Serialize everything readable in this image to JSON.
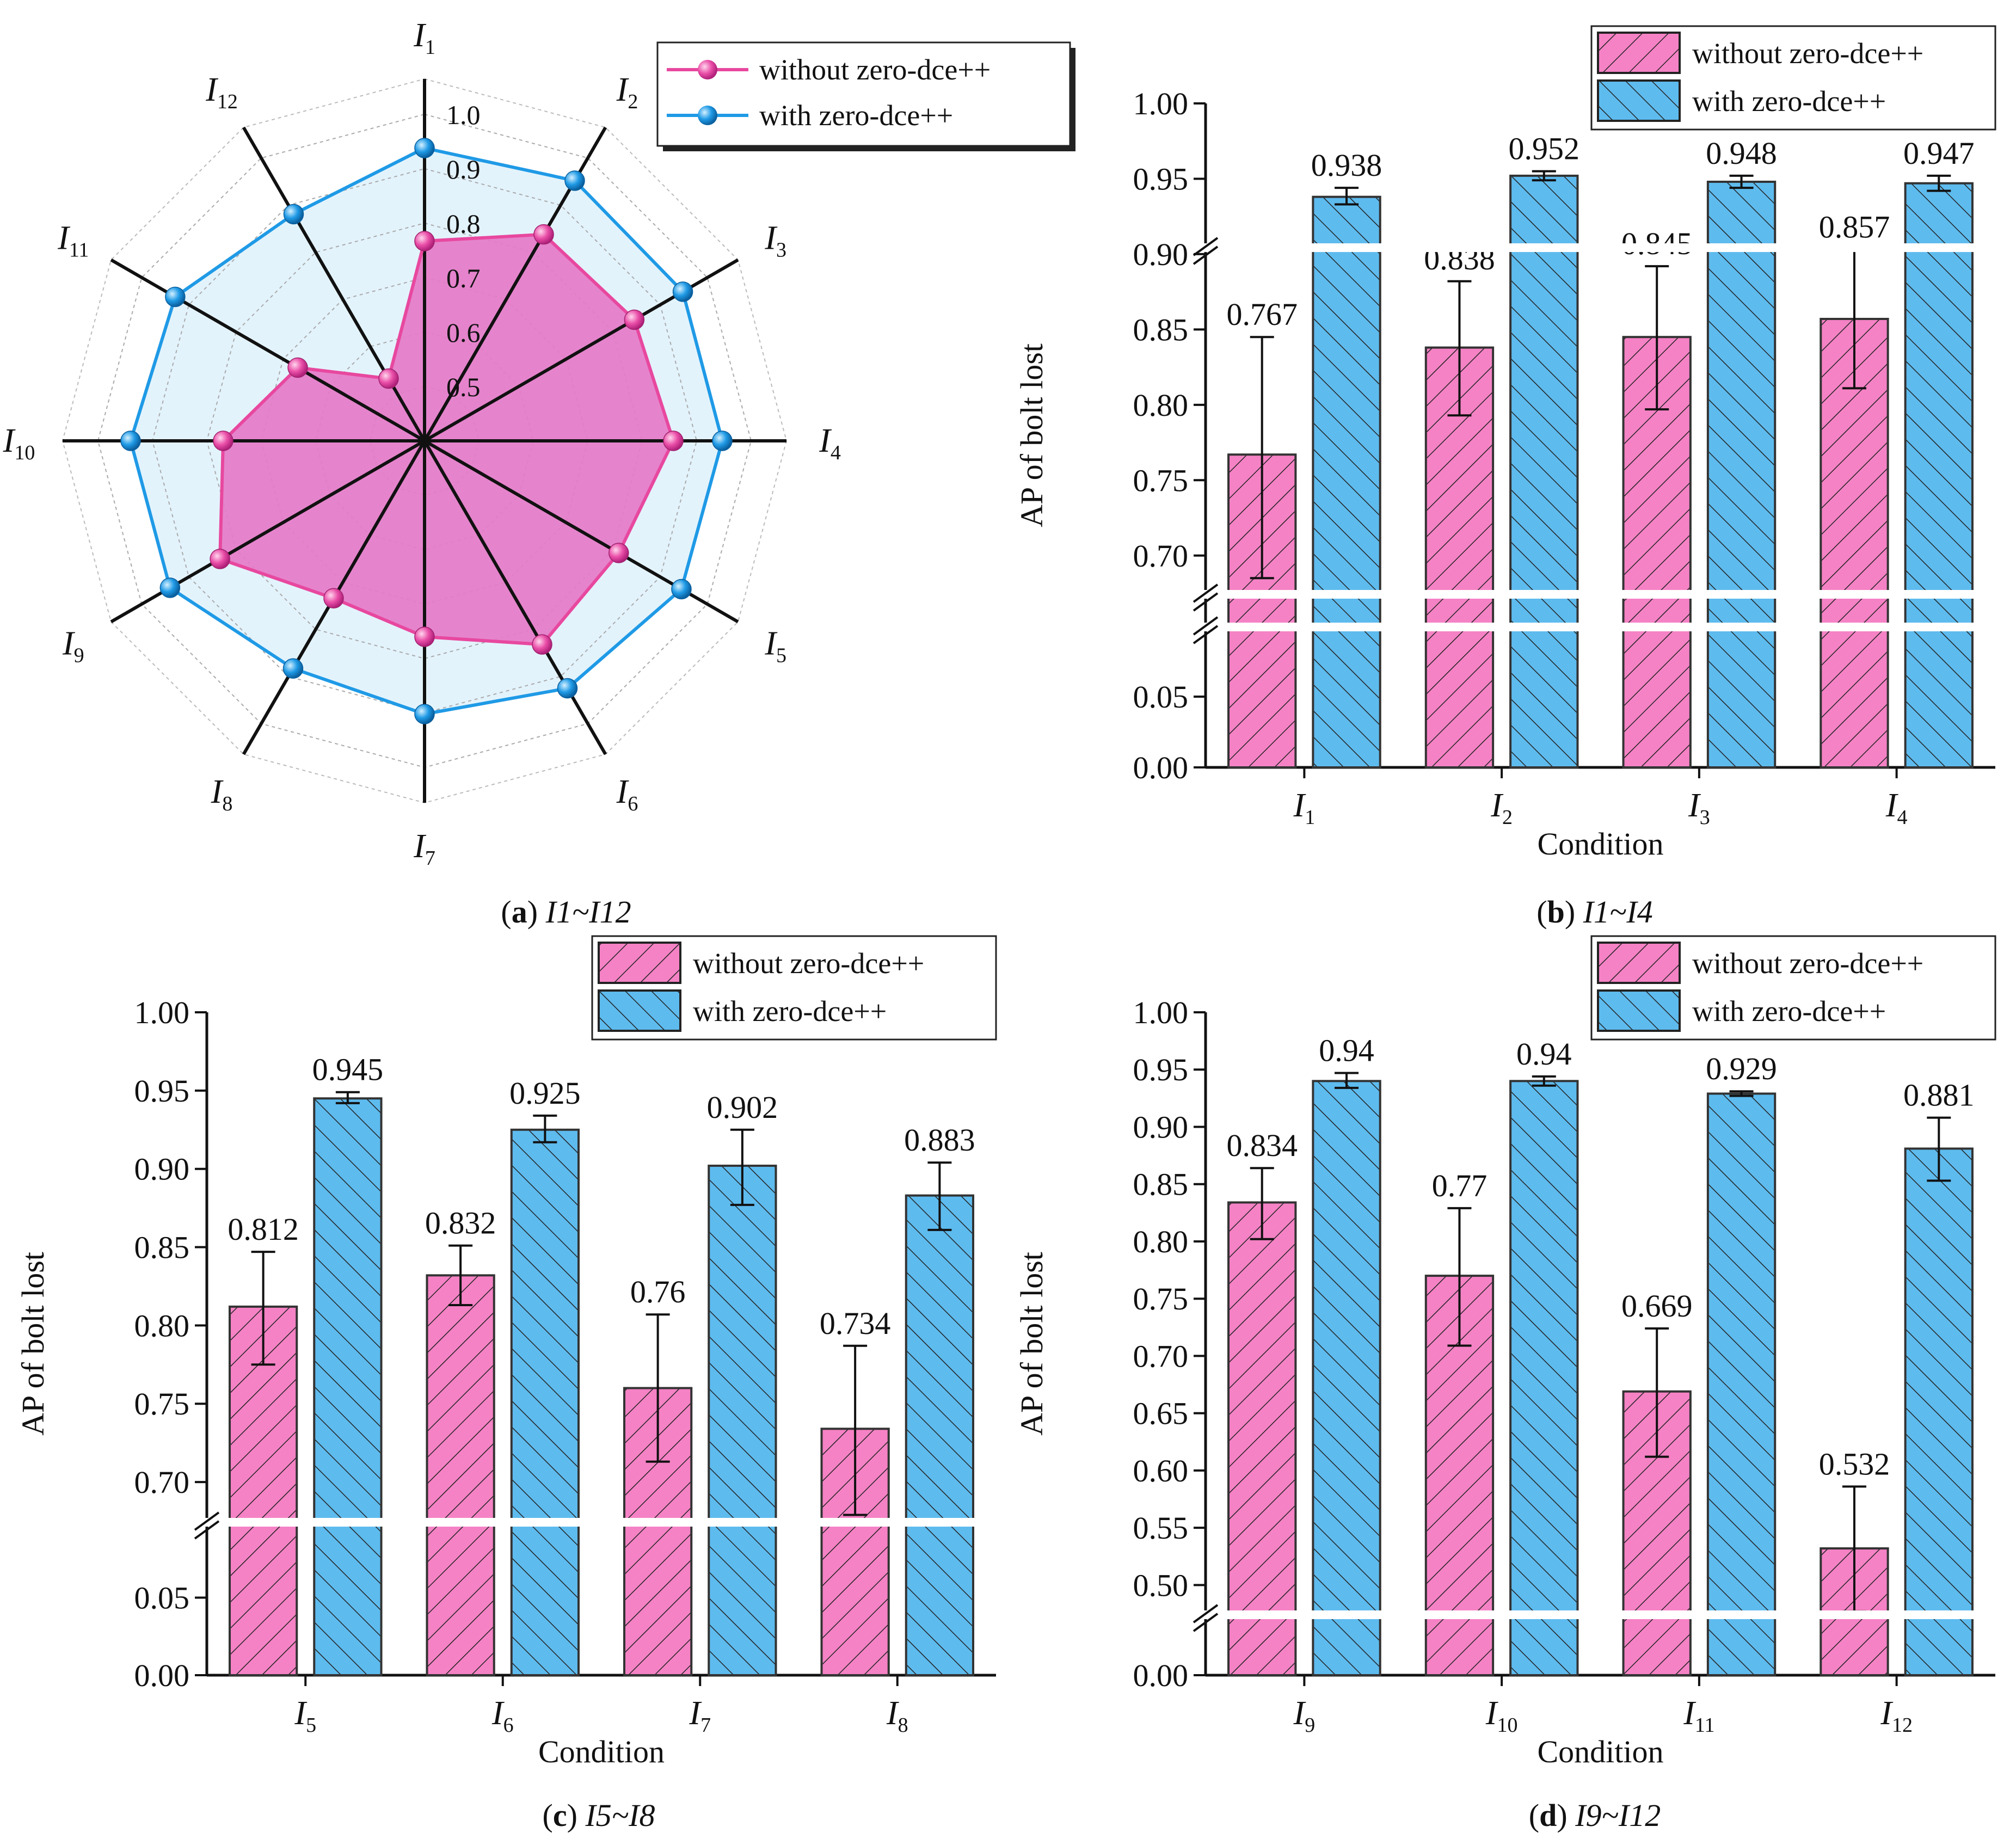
{
  "colors": {
    "pink_fill": "#f582c5",
    "pink_line": "#e8489f",
    "pink_area": "#e57bc8",
    "blue_fill": "#5ebbee",
    "blue_line": "#1f9ae6",
    "blue_area": "#e3f3fc",
    "axis": "#111111"
  },
  "chart_data": [
    {
      "panel": "a",
      "type": "radar",
      "caption": {
        "letter": "a",
        "range": "I1~I12"
      },
      "axes": [
        {
          "base": "I",
          "sub": "1"
        },
        {
          "base": "I",
          "sub": "2"
        },
        {
          "base": "I",
          "sub": "3"
        },
        {
          "base": "I",
          "sub": "4"
        },
        {
          "base": "I",
          "sub": "5"
        },
        {
          "base": "I",
          "sub": "6"
        },
        {
          "base": "I",
          "sub": "7"
        },
        {
          "base": "I",
          "sub": "8"
        },
        {
          "base": "I",
          "sub": "9"
        },
        {
          "base": "I",
          "sub": "10"
        },
        {
          "base": "I",
          "sub": "11"
        },
        {
          "base": "I",
          "sub": "12"
        }
      ],
      "rlim": [
        0.4,
        1.0
      ],
      "ticks": [
        "0.5",
        "0.6",
        "0.7",
        "0.8",
        "0.9",
        "1.0"
      ],
      "tick_values": [
        0.5,
        0.6,
        0.7,
        0.8,
        0.9,
        1.0
      ],
      "series": [
        {
          "name": "without zero-dce++",
          "values": [
            0.767,
            0.838,
            0.845,
            0.857,
            0.812,
            0.832,
            0.76,
            0.734,
            0.834,
            0.77,
            0.669,
            0.532
          ]
        },
        {
          "name": "with zero-dce++",
          "values": [
            0.938,
            0.952,
            0.948,
            0.947,
            0.945,
            0.925,
            0.902,
            0.883,
            0.94,
            0.94,
            0.929,
            0.881
          ]
        }
      ],
      "legend": [
        "without zero-dce++",
        "with zero-dce++"
      ]
    },
    {
      "panel": "b",
      "type": "bar",
      "caption": {
        "letter": "b",
        "range": "I1~I4"
      },
      "xlabel": "Condition",
      "ylabel": "AP of bolt lost",
      "categories": [
        {
          "base": "I",
          "sub": "1"
        },
        {
          "base": "I",
          "sub": "2"
        },
        {
          "base": "I",
          "sub": "3"
        },
        {
          "base": "I",
          "sub": "4"
        }
      ],
      "series": [
        {
          "name": "without zero-dce++",
          "values": [
            0.767,
            0.838,
            0.845,
            0.857
          ],
          "labels": [
            "0.767",
            "0.838",
            "0.845",
            "0.857"
          ],
          "err_low": [
            0.685,
            0.793,
            0.797,
            0.811
          ],
          "err_high": [
            0.845,
            0.882,
            0.892,
            0.903
          ]
        },
        {
          "name": "with zero-dce++",
          "values": [
            0.938,
            0.952,
            0.948,
            0.947
          ],
          "labels": [
            "0.938",
            "0.952",
            "0.948",
            "0.947"
          ],
          "err_low": [
            0.933,
            0.949,
            0.944,
            0.942
          ],
          "err_high": [
            0.944,
            0.955,
            0.952,
            0.952
          ]
        }
      ],
      "ylim_upper": [
        0.675,
        1.0
      ],
      "ylim_lower": [
        0.0,
        0.1
      ],
      "yticks_upper": [
        "0.70",
        "0.75",
        "0.80",
        "0.85",
        "0.90",
        "0.95",
        "1.00"
      ],
      "ytick_values_upper": [
        0.7,
        0.75,
        0.8,
        0.85,
        0.9,
        0.95,
        1.0
      ],
      "yticks_lower": [
        "0.00",
        "0.05"
      ],
      "ytick_values_lower": [
        0.0,
        0.05
      ],
      "break_low": 0.1,
      "break_high": 0.675,
      "break_white_values": [
        0.905,
        0.675
      ],
      "legend": [
        "without zero-dce++",
        "with zero-dce++"
      ]
    },
    {
      "panel": "c",
      "type": "bar",
      "caption": {
        "letter": "c",
        "range": "I5~I8"
      },
      "xlabel": "Condition",
      "ylabel": "AP of bolt lost",
      "categories": [
        {
          "base": "I",
          "sub": "5"
        },
        {
          "base": "I",
          "sub": "6"
        },
        {
          "base": "I",
          "sub": "7"
        },
        {
          "base": "I",
          "sub": "8"
        }
      ],
      "series": [
        {
          "name": "without zero-dce++",
          "values": [
            0.812,
            0.832,
            0.76,
            0.734
          ],
          "labels": [
            "0.812",
            "0.832",
            "0.76",
            "0.734"
          ],
          "err_low": [
            0.775,
            0.813,
            0.713,
            0.679
          ],
          "err_high": [
            0.847,
            0.851,
            0.807,
            0.787
          ]
        },
        {
          "name": "with zero-dce++",
          "values": [
            0.945,
            0.925,
            0.902,
            0.883
          ],
          "labels": [
            "0.945",
            "0.925",
            "0.902",
            "0.883"
          ],
          "err_low": [
            0.942,
            0.917,
            0.877,
            0.861
          ],
          "err_high": [
            0.949,
            0.934,
            0.925,
            0.904
          ]
        }
      ],
      "ylim_upper": [
        0.675,
        1.0
      ],
      "ylim_lower": [
        0.0,
        0.1
      ],
      "yticks_upper": [
        "0.70",
        "0.75",
        "0.80",
        "0.85",
        "0.90",
        "0.95",
        "1.00"
      ],
      "ytick_values_upper": [
        0.7,
        0.75,
        0.8,
        0.85,
        0.9,
        0.95,
        1.0
      ],
      "yticks_lower": [
        "0.00",
        "0.05"
      ],
      "ytick_values_lower": [
        0.0,
        0.05
      ],
      "break_low": 0.1,
      "break_high": 0.675,
      "break_white_values": [
        0.675
      ],
      "legend": [
        "without zero-dce++",
        "with zero-dce++"
      ]
    },
    {
      "panel": "d",
      "type": "bar",
      "caption": {
        "letter": "d",
        "range": "I9~I12"
      },
      "xlabel": "Condition",
      "ylabel": "AP of bolt lost",
      "categories": [
        {
          "base": "I",
          "sub": "9"
        },
        {
          "base": "I",
          "sub": "10"
        },
        {
          "base": "I",
          "sub": "11"
        },
        {
          "base": "I",
          "sub": "12"
        }
      ],
      "series": [
        {
          "name": "without zero-dce++",
          "values": [
            0.834,
            0.77,
            0.669,
            0.532
          ],
          "labels": [
            "0.834",
            "0.77",
            "0.669",
            "0.532"
          ],
          "err_low": [
            0.802,
            0.709,
            0.612,
            0.477
          ],
          "err_high": [
            0.864,
            0.829,
            0.724,
            0.586
          ]
        },
        {
          "name": "with zero-dce++",
          "values": [
            0.94,
            0.94,
            0.929,
            0.881
          ],
          "labels": [
            "0.94",
            "0.94",
            "0.929",
            "0.881"
          ],
          "err_low": [
            0.934,
            0.936,
            0.927,
            0.853
          ],
          "err_high": [
            0.947,
            0.944,
            0.931,
            0.908
          ]
        }
      ],
      "ylim_upper": [
        0.475,
        1.0
      ],
      "ylim_lower": [
        0.0,
        0.1
      ],
      "yticks_upper": [
        "0.50",
        "0.55",
        "0.60",
        "0.65",
        "0.70",
        "0.75",
        "0.80",
        "0.85",
        "0.90",
        "0.95",
        "1.00"
      ],
      "ytick_values_upper": [
        0.5,
        0.55,
        0.6,
        0.65,
        0.7,
        0.75,
        0.8,
        0.85,
        0.9,
        0.95,
        1.0
      ],
      "yticks_lower": [
        "0.00"
      ],
      "ytick_values_lower": [
        0.0
      ],
      "break_low": 0.1,
      "break_high": 0.475,
      "break_white_values": [
        0.475
      ],
      "legend": [
        "without zero-dce++",
        "with zero-dce++"
      ]
    }
  ]
}
